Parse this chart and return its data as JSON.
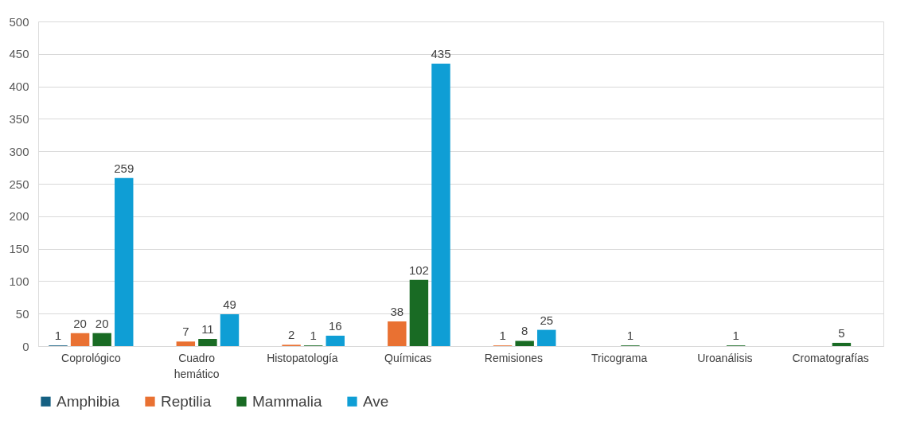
{
  "chart_data": {
    "type": "bar",
    "categories": [
      "Coprológico",
      "Cuadro hemático",
      "Histopatología",
      "Químicas",
      "Remisiones",
      "Tricograma",
      "Uroanálisis",
      "Cromatografías"
    ],
    "series": [
      {
        "name": "Amphibia",
        "color": "#156082",
        "values": [
          1,
          null,
          null,
          null,
          null,
          null,
          null,
          null
        ]
      },
      {
        "name": "Reptilia",
        "color": "#e97132",
        "values": [
          20,
          7,
          2,
          38,
          1,
          null,
          null,
          null
        ]
      },
      {
        "name": "Mammalia",
        "color": "#196b24",
        "values": [
          20,
          11,
          1,
          102,
          8,
          1,
          1,
          5
        ]
      },
      {
        "name": "Ave",
        "color": "#0f9ed5",
        "values": [
          259,
          49,
          16,
          435,
          25,
          null,
          null,
          null
        ]
      }
    ],
    "ylim": [
      0,
      500
    ],
    "yticks": [
      0,
      50,
      100,
      150,
      200,
      250,
      300,
      350,
      400,
      450,
      500
    ],
    "grid": "y",
    "legend": "bottom",
    "data_labels": true
  }
}
